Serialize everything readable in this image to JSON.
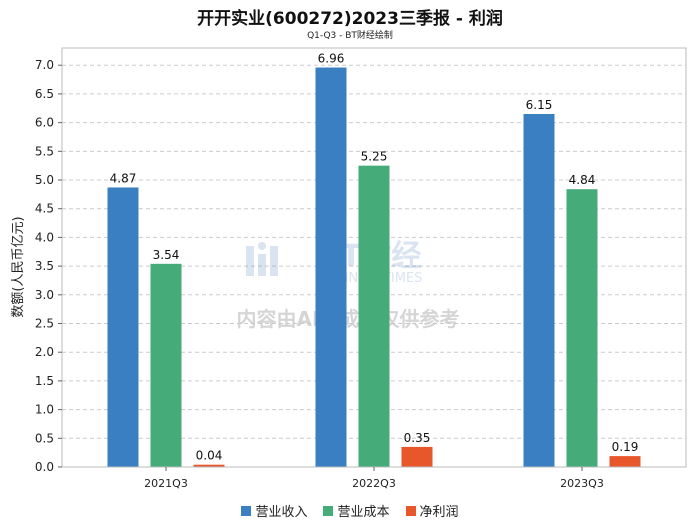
{
  "chart_data": {
    "type": "bar",
    "title": "开开实业(600272)2023三季报 - 利润",
    "subtitle": "Q1-Q3 - BT财经绘制",
    "ylabel": "数额(人民币亿元)",
    "xlabel": "",
    "categories": [
      "2021Q3",
      "2022Q3",
      "2023Q3"
    ],
    "series": [
      {
        "name": "营业收入",
        "color": "#3a7fc1",
        "values": [
          4.87,
          6.96,
          6.15
        ]
      },
      {
        "name": "营业成本",
        "color": "#45ab79",
        "values": [
          3.54,
          5.25,
          4.84
        ]
      },
      {
        "name": "净利润",
        "color": "#e8562c",
        "values": [
          0.04,
          0.35,
          0.19
        ]
      }
    ],
    "ylim": [
      0,
      7.3
    ],
    "yticks": [
      "0.0",
      "0.5",
      "1.0",
      "1.5",
      "2.0",
      "2.5",
      "3.0",
      "3.5",
      "4.0",
      "4.5",
      "5.0",
      "5.5",
      "6.0",
      "6.5",
      "7.0"
    ],
    "grid": true,
    "legend_position": "bottom",
    "watermark": {
      "brand": "BT财经",
      "brand_en": "BUSINESSTIMES",
      "notice": "内容由AI生成，仅供参考"
    }
  }
}
